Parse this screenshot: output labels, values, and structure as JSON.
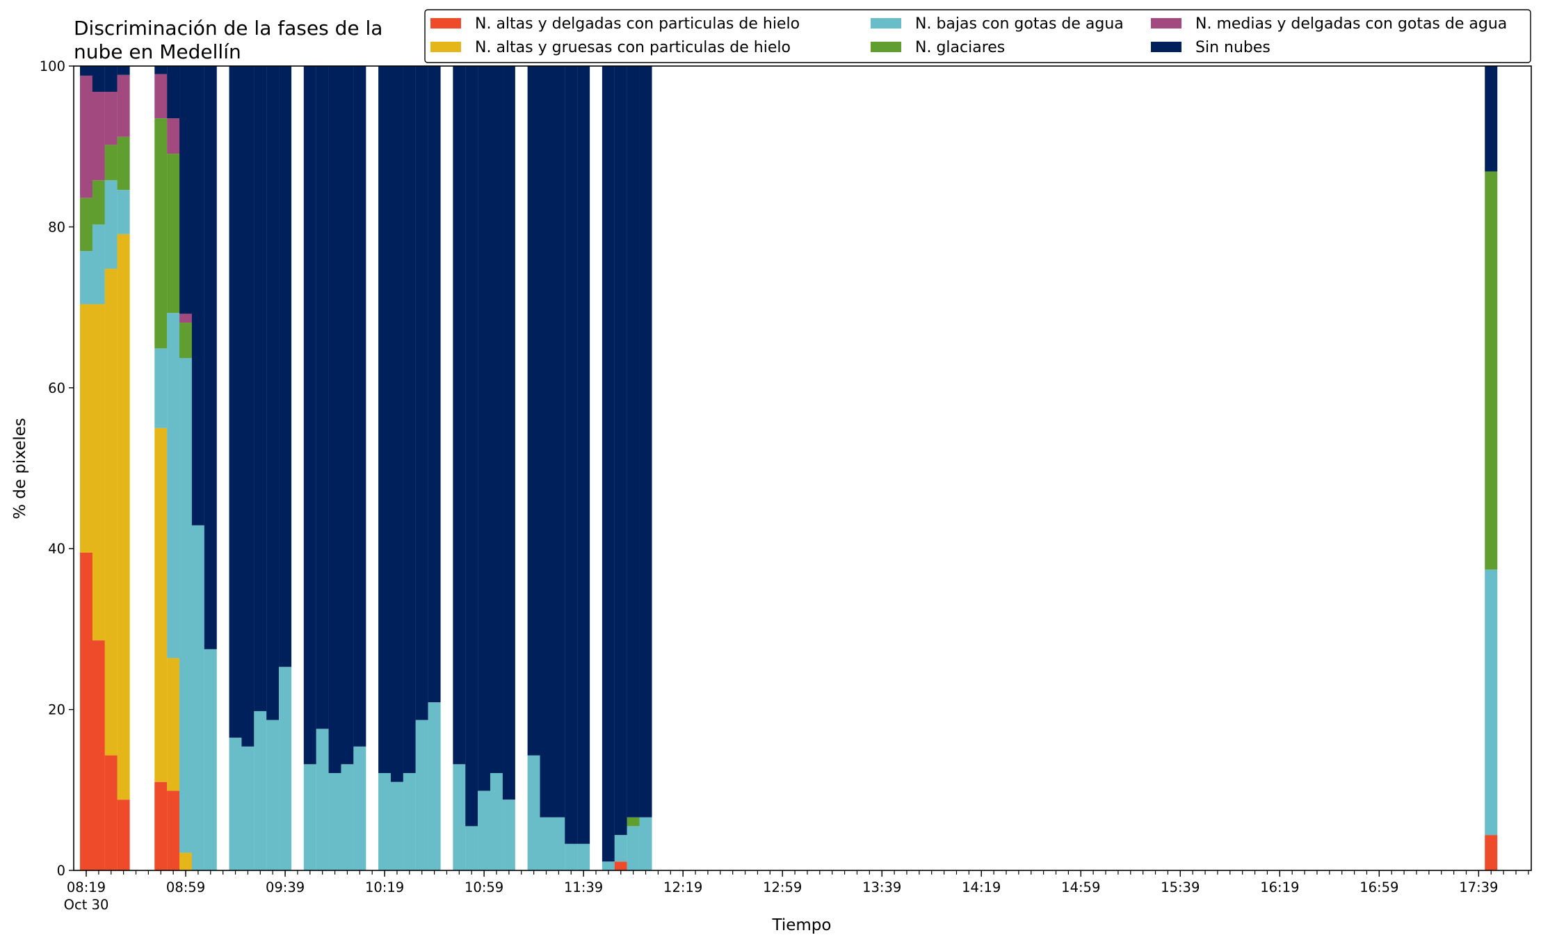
{
  "chart_data": {
    "type": "bar",
    "stacked": true,
    "title_lines": [
      "Discriminación de la fases de la",
      "nube en Medellín"
    ],
    "xlabel": "Tiempo",
    "ylabel": "% de pixeles",
    "ylim": [
      0,
      100
    ],
    "yticks": [
      0,
      20,
      40,
      60,
      80,
      100
    ],
    "x_start_time": "08:19",
    "x_end_time": "17:59",
    "x_step_minutes": 5,
    "xticks_major": [
      "08:19",
      "08:59",
      "09:39",
      "10:19",
      "10:59",
      "11:39",
      "12:19",
      "12:59",
      "13:39",
      "14:19",
      "14:59",
      "15:39",
      "16:19",
      "16:59",
      "17:39"
    ],
    "xtick_date": "Oct 30",
    "grid": false,
    "legend_position": "top-right",
    "legend_columns": 3,
    "series": [
      {
        "name": "N. altas y delgadas con particulas de hielo",
        "color": "#ee4b2b"
      },
      {
        "name": "N. altas y gruesas con particulas de hielo",
        "color": "#e4b61a"
      },
      {
        "name": "N. bajas con gotas de agua",
        "color": "#69bdc9"
      },
      {
        "name": "N. glaciares",
        "color": "#5f9e2f"
      },
      {
        "name": "N. medias y delgadas con gotas de agua",
        "color": "#a24a7f"
      },
      {
        "name": "Sin nubes",
        "color": "#00205b"
      }
    ],
    "bars": [
      {
        "time": "08:19",
        "values": [
          39.5,
          30.9,
          6.6,
          6.6,
          15.2,
          1.2
        ]
      },
      {
        "time": "08:24",
        "values": [
          28.6,
          41.8,
          9.9,
          5.5,
          11.0,
          3.2
        ]
      },
      {
        "time": "08:29",
        "values": [
          14.3,
          60.5,
          11.0,
          4.4,
          6.6,
          3.2
        ]
      },
      {
        "time": "08:34",
        "values": [
          8.8,
          70.3,
          5.5,
          6.6,
          7.7,
          1.1
        ]
      },
      {
        "time": "08:49",
        "values": [
          11.0,
          44.0,
          9.9,
          28.6,
          5.5,
          1.0
        ]
      },
      {
        "time": "08:54",
        "values": [
          9.9,
          16.5,
          42.9,
          19.8,
          4.4,
          6.5
        ]
      },
      {
        "time": "08:59",
        "values": [
          0,
          2.2,
          61.5,
          4.4,
          1.1,
          30.8
        ]
      },
      {
        "time": "09:04",
        "values": [
          0,
          0,
          42.9,
          0,
          0,
          57.1
        ]
      },
      {
        "time": "09:09",
        "values": [
          0,
          0,
          27.5,
          0,
          0,
          72.5
        ]
      },
      {
        "time": "09:19",
        "values": [
          0,
          0,
          16.5,
          0,
          0,
          83.5
        ]
      },
      {
        "time": "09:24",
        "values": [
          0,
          0,
          15.4,
          0,
          0,
          84.6
        ]
      },
      {
        "time": "09:29",
        "values": [
          0,
          0,
          19.8,
          0,
          0,
          80.2
        ]
      },
      {
        "time": "09:34",
        "values": [
          0,
          0,
          18.7,
          0,
          0,
          81.3
        ]
      },
      {
        "time": "09:39",
        "values": [
          0,
          0,
          25.3,
          0,
          0,
          74.7
        ]
      },
      {
        "time": "09:49",
        "values": [
          0,
          0,
          13.2,
          0,
          0,
          86.8
        ]
      },
      {
        "time": "09:54",
        "values": [
          0,
          0,
          17.6,
          0,
          0,
          82.4
        ]
      },
      {
        "time": "09:59",
        "values": [
          0,
          0,
          12.1,
          0,
          0,
          87.9
        ]
      },
      {
        "time": "10:04",
        "values": [
          0,
          0,
          13.2,
          0,
          0,
          86.8
        ]
      },
      {
        "time": "10:09",
        "values": [
          0,
          0,
          15.4,
          0,
          0,
          84.6
        ]
      },
      {
        "time": "10:19",
        "values": [
          0,
          0,
          12.1,
          0,
          0,
          87.9
        ]
      },
      {
        "time": "10:24",
        "values": [
          0,
          0,
          11.0,
          0,
          0,
          89.0
        ]
      },
      {
        "time": "10:29",
        "values": [
          0,
          0,
          12.1,
          0,
          0,
          87.9
        ]
      },
      {
        "time": "10:34",
        "values": [
          0,
          0,
          18.7,
          0,
          0,
          81.3
        ]
      },
      {
        "time": "10:39",
        "values": [
          0,
          0,
          20.9,
          0,
          0,
          79.1
        ]
      },
      {
        "time": "10:49",
        "values": [
          0,
          0,
          13.2,
          0,
          0,
          86.8
        ]
      },
      {
        "time": "10:54",
        "values": [
          0,
          0,
          5.5,
          0,
          0,
          94.5
        ]
      },
      {
        "time": "10:59",
        "values": [
          0,
          0,
          9.9,
          0,
          0,
          90.1
        ]
      },
      {
        "time": "11:04",
        "values": [
          0,
          0,
          12.1,
          0,
          0,
          87.9
        ]
      },
      {
        "time": "11:09",
        "values": [
          0,
          0,
          8.8,
          0,
          0,
          91.2
        ]
      },
      {
        "time": "11:19",
        "values": [
          0,
          0,
          14.3,
          0,
          0,
          85.7
        ]
      },
      {
        "time": "11:24",
        "values": [
          0,
          0,
          6.6,
          0,
          0,
          93.4
        ]
      },
      {
        "time": "11:29",
        "values": [
          0,
          0,
          6.6,
          0,
          0,
          93.4
        ]
      },
      {
        "time": "11:34",
        "values": [
          0,
          0,
          3.3,
          0,
          0,
          96.7
        ]
      },
      {
        "time": "11:39",
        "values": [
          0,
          0,
          3.3,
          0,
          0,
          96.7
        ]
      },
      {
        "time": "11:49",
        "values": [
          0,
          0,
          1.1,
          0,
          0,
          98.9
        ]
      },
      {
        "time": "11:54",
        "values": [
          1.1,
          0,
          3.3,
          0,
          0,
          95.6
        ]
      },
      {
        "time": "11:59",
        "values": [
          0,
          0,
          5.5,
          1.1,
          0,
          93.4
        ]
      },
      {
        "time": "12:04",
        "values": [
          0,
          0,
          6.6,
          0,
          0,
          93.4
        ]
      },
      {
        "time": "17:44",
        "values": [
          4.4,
          0,
          33.0,
          49.5,
          0,
          13.1
        ]
      }
    ]
  }
}
